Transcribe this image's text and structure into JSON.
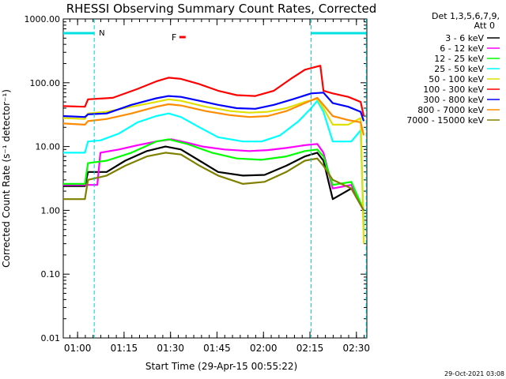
{
  "chart_data": {
    "type": "line",
    "title": "RHESSI Observing Summary Count Rates, Corrected",
    "xlabel": "Start Time (29-Apr-15 00:55:22)",
    "ylabel": "Corrected Count Rate (s⁻¹ detector⁻¹)",
    "y_scale": "log",
    "ylim": [
      0.01,
      1000
    ],
    "xlim_minutes": [
      0,
      98
    ],
    "y_ticks": [
      "1000.00",
      "100.00",
      "10.00",
      "1.00",
      "0.10",
      "0.01"
    ],
    "x_ticks": [
      {
        "label": "01:00",
        "m": 4.63
      },
      {
        "label": "01:15",
        "m": 19.63
      },
      {
        "label": "01:30",
        "m": 34.63
      },
      {
        "label": "01:45",
        "m": 49.63
      },
      {
        "label": "02:00",
        "m": 64.63
      },
      {
        "label": "02:15",
        "m": 79.63
      },
      {
        "label": "02:30",
        "m": 94.63
      }
    ],
    "legend_header": [
      "Det 1,3,5,6,7,9,",
      "Att 0"
    ],
    "series": [
      {
        "name": "3 - 6 keV",
        "color": "#000000",
        "points": [
          [
            0,
            2.4
          ],
          [
            7,
            2.4
          ],
          [
            8,
            4
          ],
          [
            14,
            4
          ],
          [
            20,
            6
          ],
          [
            27,
            8.5
          ],
          [
            33,
            10
          ],
          [
            38,
            9
          ],
          [
            44,
            6
          ],
          [
            50,
            4
          ],
          [
            58,
            3.5
          ],
          [
            65,
            3.6
          ],
          [
            72,
            5
          ],
          [
            78,
            7
          ],
          [
            82,
            8
          ],
          [
            84,
            6
          ],
          [
            87,
            1.5
          ],
          [
            93,
            2.2
          ],
          [
            97,
            1.0
          ]
        ]
      },
      {
        "name": "6 - 12 keV",
        "color": "#ff00ff",
        "points": [
          [
            0,
            2.5
          ],
          [
            11,
            2.5
          ],
          [
            12,
            8
          ],
          [
            18,
            9
          ],
          [
            24,
            10.5
          ],
          [
            30,
            12
          ],
          [
            35,
            13
          ],
          [
            40,
            11.5
          ],
          [
            45,
            10
          ],
          [
            52,
            9
          ],
          [
            60,
            8.5
          ],
          [
            66,
            8.8
          ],
          [
            72,
            9.5
          ],
          [
            78,
            10.5
          ],
          [
            82,
            11
          ],
          [
            84,
            8
          ],
          [
            87,
            2.2
          ],
          [
            93,
            2.5
          ],
          [
            97,
            1.0
          ]
        ]
      },
      {
        "name": "12 - 25 keV",
        "color": "#00ff00",
        "points": [
          [
            0,
            2.6
          ],
          [
            7,
            2.6
          ],
          [
            8,
            5.5
          ],
          [
            14,
            6
          ],
          [
            22,
            8
          ],
          [
            30,
            12
          ],
          [
            34,
            13
          ],
          [
            40,
            11
          ],
          [
            48,
            8
          ],
          [
            56,
            6.5
          ],
          [
            64,
            6.2
          ],
          [
            72,
            7
          ],
          [
            78,
            8.5
          ],
          [
            82,
            9
          ],
          [
            84,
            7
          ],
          [
            87,
            2.5
          ],
          [
            93,
            2.8
          ],
          [
            97,
            1.0
          ]
        ]
      },
      {
        "name": "25 - 50 keV",
        "color": "#00ffff",
        "points": [
          [
            0,
            8
          ],
          [
            7,
            8
          ],
          [
            8,
            12
          ],
          [
            12,
            12.5
          ],
          [
            18,
            16
          ],
          [
            24,
            24
          ],
          [
            30,
            30
          ],
          [
            34,
            33
          ],
          [
            38,
            29
          ],
          [
            44,
            20
          ],
          [
            50,
            14
          ],
          [
            58,
            12
          ],
          [
            64,
            12
          ],
          [
            70,
            15
          ],
          [
            76,
            25
          ],
          [
            80,
            40
          ],
          [
            82,
            52
          ],
          [
            84,
            35
          ],
          [
            87,
            12
          ],
          [
            93,
            12
          ],
          [
            96,
            18
          ],
          [
            97,
            0.5
          ]
        ]
      },
      {
        "name": "50 - 100 keV",
        "color": "#e0e000",
        "points": [
          [
            0,
            28
          ],
          [
            7,
            27
          ],
          [
            8,
            33
          ],
          [
            14,
            35
          ],
          [
            22,
            42
          ],
          [
            30,
            50
          ],
          [
            34,
            55
          ],
          [
            38,
            52
          ],
          [
            46,
            42
          ],
          [
            54,
            36
          ],
          [
            60,
            34
          ],
          [
            66,
            35
          ],
          [
            72,
            40
          ],
          [
            78,
            50
          ],
          [
            82,
            56
          ],
          [
            84,
            40
          ],
          [
            87,
            22
          ],
          [
            92,
            22
          ],
          [
            96,
            28
          ],
          [
            97,
            0.3
          ]
        ]
      },
      {
        "name": "100 - 300 keV",
        "color": "#ff0000",
        "points": [
          [
            0,
            43
          ],
          [
            7,
            42
          ],
          [
            8,
            55
          ],
          [
            16,
            58
          ],
          [
            24,
            80
          ],
          [
            30,
            105
          ],
          [
            34,
            120
          ],
          [
            38,
            115
          ],
          [
            44,
            95
          ],
          [
            50,
            75
          ],
          [
            56,
            64
          ],
          [
            62,
            62
          ],
          [
            68,
            75
          ],
          [
            74,
            120
          ],
          [
            78,
            160
          ],
          [
            82,
            180
          ],
          [
            83,
            185
          ],
          [
            84,
            75
          ],
          [
            87,
            68
          ],
          [
            92,
            60
          ],
          [
            96,
            50
          ],
          [
            97,
            30
          ]
        ]
      },
      {
        "name": "300 - 800 keV",
        "color": "#0000ff",
        "points": [
          [
            0,
            30
          ],
          [
            7,
            29
          ],
          [
            8,
            32
          ],
          [
            14,
            33
          ],
          [
            22,
            45
          ],
          [
            30,
            57
          ],
          [
            34,
            62
          ],
          [
            38,
            60
          ],
          [
            44,
            52
          ],
          [
            50,
            45
          ],
          [
            56,
            40
          ],
          [
            62,
            39
          ],
          [
            68,
            45
          ],
          [
            74,
            55
          ],
          [
            80,
            68
          ],
          [
            84,
            70
          ],
          [
            87,
            48
          ],
          [
            92,
            42
          ],
          [
            96,
            35
          ],
          [
            97,
            25
          ]
        ]
      },
      {
        "name": "800 - 7000 keV",
        "color": "#ff8c00",
        "points": [
          [
            0,
            23
          ],
          [
            7,
            22
          ],
          [
            8,
            25
          ],
          [
            14,
            27
          ],
          [
            22,
            33
          ],
          [
            30,
            42
          ],
          [
            34,
            46
          ],
          [
            38,
            44
          ],
          [
            46,
            36
          ],
          [
            54,
            31
          ],
          [
            60,
            29
          ],
          [
            66,
            30
          ],
          [
            72,
            36
          ],
          [
            78,
            48
          ],
          [
            82,
            58
          ],
          [
            84,
            45
          ],
          [
            87,
            30
          ],
          [
            92,
            26
          ],
          [
            96,
            24
          ],
          [
            97,
            15
          ]
        ]
      },
      {
        "name": "7000 - 15000 keV",
        "color": "#808000",
        "points": [
          [
            0,
            1.5
          ],
          [
            7,
            1.5
          ],
          [
            8,
            3
          ],
          [
            14,
            3.5
          ],
          [
            20,
            5
          ],
          [
            27,
            7
          ],
          [
            33,
            8
          ],
          [
            38,
            7.5
          ],
          [
            44,
            5
          ],
          [
            50,
            3.5
          ],
          [
            58,
            2.6
          ],
          [
            65,
            2.8
          ],
          [
            72,
            4
          ],
          [
            78,
            6
          ],
          [
            82,
            6.5
          ],
          [
            84,
            5
          ],
          [
            87,
            3
          ],
          [
            93,
            2.2
          ],
          [
            97,
            1.0
          ]
        ]
      }
    ],
    "annotations": {
      "night_markers": [
        {
          "label": "N",
          "m_start": 0,
          "m_end": 10.0,
          "color": "#00e0e0"
        },
        {
          "label": "",
          "m_start": 80.0,
          "m_end": 97.8,
          "color": "#00e0e0"
        }
      ],
      "flare_marker": {
        "label": "F",
        "m_start": 37.5,
        "m_end": 39.5,
        "y": 600,
        "color": "#ff0000"
      },
      "vlines_minutes": [
        10.0,
        80.0,
        97.8
      ]
    },
    "grid": false,
    "legend_position": "right"
  },
  "footer_timestamp": "29-Oct-2021 03:08"
}
